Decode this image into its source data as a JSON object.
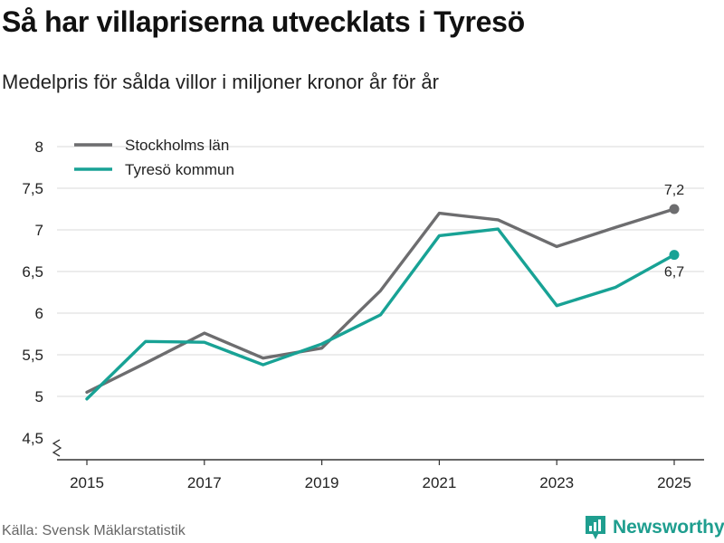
{
  "header": {
    "title": "Så har villapriserna utvecklats i Tyresö",
    "subtitle": "Medelpris för sålda villor i miljoner kronor år för år"
  },
  "footer": {
    "source": "Källa: Svensk Mäklarstatistik",
    "brand": "Newsworthy"
  },
  "colors": {
    "stockholm": "#6d6d6f",
    "tyreso": "#18a295",
    "grid": "#d9d9d9",
    "axis": "#333333",
    "brand": "#1f9e8f"
  },
  "chart_data": {
    "type": "line",
    "title": "Så har villapriserna utvecklats i Tyresö",
    "subtitle": "Medelpris för sålda villor i miljoner kronor år för år",
    "xlabel": "",
    "ylabel": "",
    "x": [
      2015,
      2016,
      2017,
      2018,
      2019,
      2020,
      2021,
      2022,
      2023,
      2024,
      2025
    ],
    "xticks": [
      "2015",
      "2017",
      "2019",
      "2021",
      "2023",
      "2025"
    ],
    "yticks": [
      "4,5",
      "5",
      "5,5",
      "6",
      "6,5",
      "7",
      "7,5",
      "8"
    ],
    "ylim": [
      4.5,
      8
    ],
    "y_axis_break": true,
    "grid": true,
    "legend": "top-left",
    "series": [
      {
        "name": "Stockholms län",
        "color": "#6d6d6f",
        "values": [
          5.05,
          5.4,
          5.76,
          5.46,
          5.58,
          6.27,
          7.2,
          7.12,
          6.8,
          7.03,
          7.25
        ],
        "end_label": "7,2",
        "end_label_position": "above"
      },
      {
        "name": "Tyresö kommun",
        "color": "#18a295",
        "values": [
          4.97,
          5.66,
          5.65,
          5.38,
          5.63,
          5.98,
          6.93,
          7.01,
          6.09,
          6.31,
          6.7
        ],
        "end_label": "6,7",
        "end_label_position": "below"
      }
    ]
  }
}
